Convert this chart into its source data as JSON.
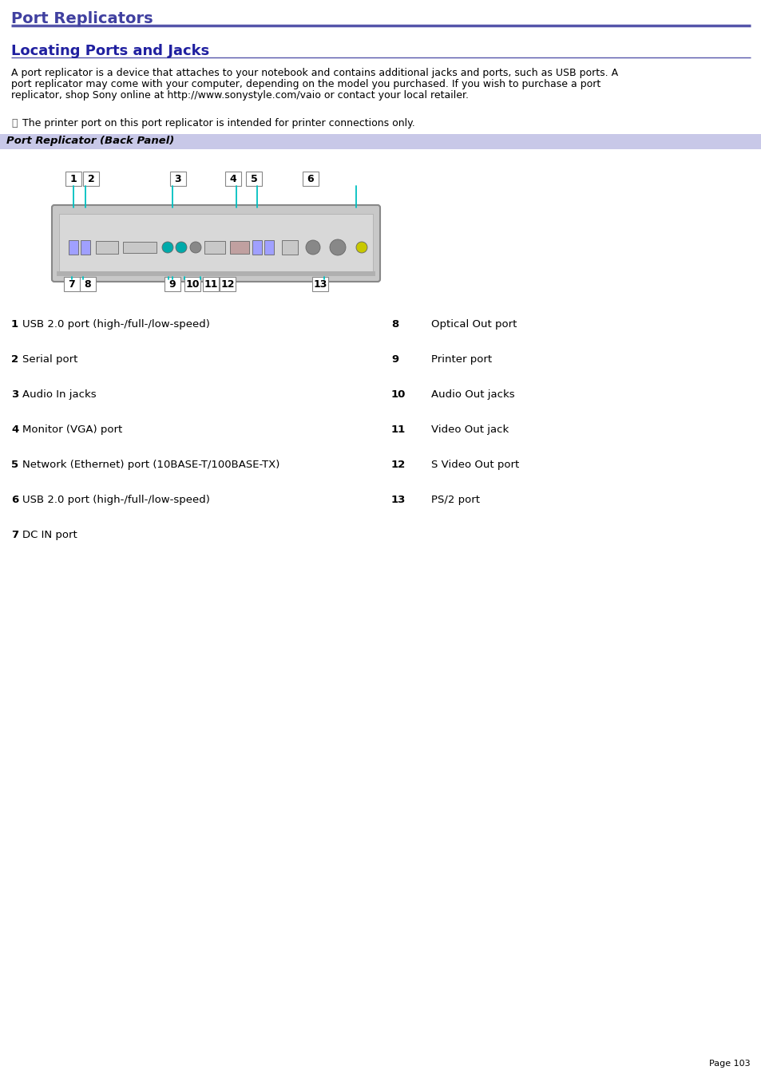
{
  "title1": "Port Replicators",
  "title2": "Locating Ports and Jacks",
  "title1_color": "#4040a0",
  "title2_color": "#2020a0",
  "body_text_line1": "A port replicator is a device that attaches to your notebook and contains additional jacks and ports, such as USB ports. A",
  "body_text_line2": "port replicator may come with your computer, depending on the model you purchased. If you wish to purchase a port",
  "body_text_line3": "replicator, shop Sony online at http://www.sonystyle.com/vaio or contact your local retailer.",
  "link_text": "http://www.sonystyle.com/vaio",
  "note_text": "The printer port on this port replicator is intended for printer connections only.",
  "section_label": "Port Replicator (Back Panel)",
  "section_bg": "#c8c8e8",
  "hr_color": "#5555aa",
  "items_left": [
    {
      "num": "1",
      "desc": "USB 2.0 port (high-/full-/low-speed)"
    },
    {
      "num": "2",
      "desc": "Serial port"
    },
    {
      "num": "3",
      "desc": "Audio In jacks"
    },
    {
      "num": "4",
      "desc": "Monitor (VGA) port"
    },
    {
      "num": "5",
      "desc": "Network (Ethernet) port (10BASE-T/100BASE-TX)"
    },
    {
      "num": "6",
      "desc": "USB 2.0 port (high-/full-/low-speed)"
    },
    {
      "num": "7",
      "desc": "DC IN port"
    }
  ],
  "items_right": [
    {
      "num": "8",
      "desc": "Optical Out port"
    },
    {
      "num": "9",
      "desc": "Printer port"
    },
    {
      "num": "10",
      "desc": "Audio Out jacks"
    },
    {
      "num": "11",
      "desc": "Video Out jack"
    },
    {
      "num": "12",
      "desc": "S Video Out port"
    },
    {
      "num": "13",
      "desc": "PS/2 port"
    }
  ],
  "page_number": "Page 103",
  "bg_color": "#ffffff",
  "text_color": "#000000",
  "cyan": "#00c0c0"
}
